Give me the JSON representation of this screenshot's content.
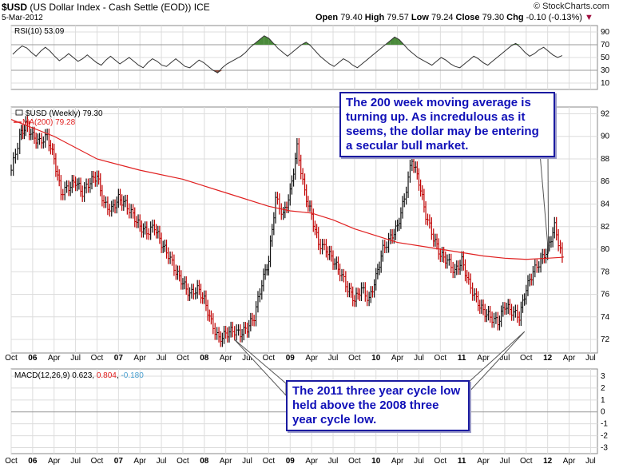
{
  "header": {
    "symbol": "$USD",
    "description": "(US Dollar Index - Cash Settle (EOD))",
    "exchange": "ICE",
    "date": "5-Mar-2012",
    "open_label": "Open",
    "open": "79.40",
    "high_label": "High",
    "high": "79.57",
    "low_label": "Low",
    "low": "79.24",
    "close_label": "Close",
    "close": "79.30",
    "chg_label": "Chg",
    "chg": "-0.10 (-0.13%)",
    "brand": "© StockCharts.com"
  },
  "annotations": {
    "ma_note": "The 200 week moving average is turning up. As incredulous as it seems, the dollar may be entering a secular bull market.",
    "cycle_note": "The 2011 three year cycle low held above the 2008 three year cycle low."
  },
  "colors": {
    "price": "#111111",
    "price_down": "#c00000",
    "ma": "#e02020",
    "rsi_line": "#333333",
    "rsi_overbought": "#4a8a3a",
    "rsi_oversold": "#8a4a3a",
    "macd_line": "#000000",
    "macd_signal": "#e02020",
    "macd_hist": "#4aa0d0",
    "annotation_text": "#1010b8",
    "grid": "#dcdcdc"
  },
  "chart_data": [
    {
      "type": "line",
      "panel": "rsi",
      "legend": "RSI(10) 53.09",
      "y_ticks": [
        10,
        30,
        50,
        70,
        90
      ],
      "ylim": [
        0,
        100
      ],
      "bands": [
        30,
        70
      ],
      "series": [
        {
          "name": "RSI(10)",
          "values": [
            55,
            62,
            68,
            65,
            58,
            52,
            60,
            66,
            60,
            52,
            45,
            50,
            56,
            50,
            44,
            48,
            54,
            48,
            42,
            38,
            46,
            52,
            46,
            40,
            45,
            50,
            44,
            38,
            34,
            42,
            48,
            44,
            38,
            36,
            42,
            48,
            42,
            36,
            34,
            40,
            46,
            42,
            36,
            30,
            26,
            34,
            40,
            44,
            48,
            52,
            58,
            66,
            72,
            78,
            84,
            80,
            72,
            64,
            58,
            52,
            58,
            64,
            70,
            74,
            68,
            60,
            52,
            46,
            40,
            36,
            42,
            48,
            44,
            38,
            34,
            40,
            46,
            52,
            58,
            64,
            70,
            76,
            82,
            78,
            70,
            62,
            56,
            50,
            46,
            42,
            38,
            44,
            50,
            46,
            40,
            36,
            34,
            40,
            46,
            52,
            48,
            42,
            38,
            44,
            50,
            56,
            62,
            68,
            72,
            66,
            58,
            52,
            56,
            62,
            66,
            60,
            54,
            50,
            53.09
          ]
        }
      ]
    },
    {
      "type": "line",
      "panel": "price",
      "legend_series": "$USD (Weekly) 79.30",
      "legend_ma": "MA(200) 79.28",
      "y_ticks": [
        72,
        74,
        76,
        78,
        80,
        82,
        84,
        86,
        88,
        90,
        92
      ],
      "ylim": [
        70.8,
        92.6
      ],
      "x_ticks": [
        "Oct",
        "06",
        "Apr",
        "Jul",
        "Oct",
        "07",
        "Apr",
        "Jul",
        "Oct",
        "08",
        "Apr",
        "Jul",
        "Oct",
        "09",
        "Apr",
        "Jul",
        "Oct",
        "10",
        "Apr",
        "Jul",
        "Oct",
        "11",
        "Apr",
        "Jul",
        "Oct",
        "12",
        "Apr",
        "Jul"
      ],
      "x_start": 2005.75,
      "x_end": 2012.58,
      "series": [
        {
          "name": "$USD (Weekly)",
          "x": [
            2005.75,
            2005.85,
            2005.92,
            2006.0,
            2006.08,
            2006.17,
            2006.25,
            2006.33,
            2006.42,
            2006.5,
            2006.58,
            2006.67,
            2006.75,
            2006.83,
            2006.92,
            2007.0,
            2007.08,
            2007.17,
            2007.25,
            2007.33,
            2007.42,
            2007.5,
            2007.58,
            2007.67,
            2007.75,
            2007.83,
            2007.92,
            2008.0,
            2008.08,
            2008.17,
            2008.25,
            2008.33,
            2008.42,
            2008.5,
            2008.58,
            2008.67,
            2008.75,
            2008.83,
            2008.92,
            2009.0,
            2009.08,
            2009.17,
            2009.25,
            2009.33,
            2009.42,
            2009.5,
            2009.58,
            2009.67,
            2009.75,
            2009.83,
            2009.92,
            2010.0,
            2010.08,
            2010.17,
            2010.25,
            2010.33,
            2010.42,
            2010.5,
            2010.58,
            2010.67,
            2010.75,
            2010.83,
            2010.92,
            2011.0,
            2011.08,
            2011.17,
            2011.25,
            2011.33,
            2011.42,
            2011.5,
            2011.58,
            2011.67,
            2011.75,
            2011.83,
            2011.92,
            2012.0,
            2012.08,
            2012.17
          ],
          "values": [
            87,
            90,
            91,
            90,
            89.5,
            90,
            88,
            85,
            85.5,
            86,
            85,
            86,
            86.5,
            84,
            83.5,
            84.5,
            84,
            83,
            82,
            81.5,
            82,
            80.5,
            79.5,
            78,
            77,
            76,
            76.5,
            75.5,
            73.5,
            72,
            72.5,
            72.8,
            72.5,
            73,
            74,
            77,
            79,
            84.5,
            83,
            85,
            89,
            85,
            83,
            80.5,
            80,
            79,
            78,
            76.5,
            75.5,
            76.5,
            75.5,
            77.5,
            80,
            81,
            82,
            84.5,
            88,
            86,
            83,
            81,
            79.5,
            79,
            78,
            79,
            77,
            75.5,
            74.5,
            74,
            73.5,
            75,
            74.5,
            74,
            76.5,
            78,
            79,
            80,
            82,
            79.3
          ]
        },
        {
          "name": "MA(200)",
          "x": [
            2005.75,
            2006.25,
            2006.75,
            2007.25,
            2007.75,
            2008.25,
            2008.75,
            2009.0,
            2009.25,
            2009.5,
            2009.75,
            2010.0,
            2010.25,
            2010.5,
            2010.75,
            2011.0,
            2011.25,
            2011.5,
            2011.75,
            2012.0,
            2012.17
          ],
          "values": [
            91.5,
            90,
            88,
            87,
            86.2,
            85,
            83.8,
            83.4,
            83.2,
            82.6,
            81.8,
            81.2,
            80.6,
            80.3,
            80,
            79.7,
            79.4,
            79.2,
            79.1,
            79.2,
            79.28
          ]
        }
      ]
    },
    {
      "type": "line",
      "panel": "macd",
      "legend_prefix": "MACD(12,26,9)",
      "macd_value": "0.623",
      "signal_value": "0.804",
      "hist_value": "-0.180",
      "y_ticks": [
        -3,
        -2,
        -1,
        0,
        1,
        2,
        3
      ],
      "ylim": [
        -3.5,
        3.6
      ]
    }
  ]
}
